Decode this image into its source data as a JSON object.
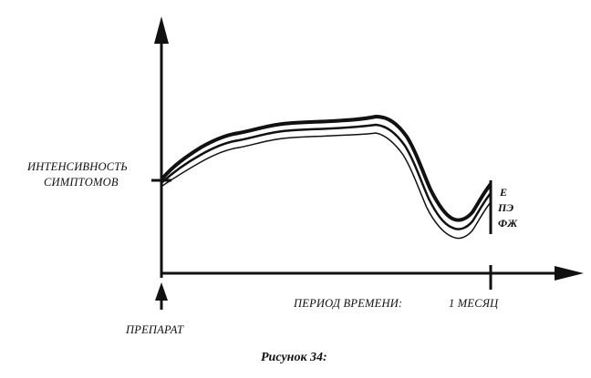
{
  "labels": {
    "y_axis": [
      "ИНТЕНСИВНОСТЬ",
      "СИМПТОМОВ"
    ],
    "x_axis": "ПЕРИОД ВРЕМЕНИ:",
    "x_tick": "1 МЕСЯЦ",
    "start_marker": "ПРЕПАРАТ"
  },
  "legend": [
    "Е",
    "ПЭ",
    "ФЖ"
  ],
  "caption": "Рисунок 34:",
  "colors": {
    "ink": "#111111",
    "background": "#ffffff"
  },
  "icons": {
    "y_axis_arrow": "arrow-up-icon",
    "x_axis_arrow": "arrow-right-icon",
    "drug_marker": "arrow-up-icon"
  }
}
